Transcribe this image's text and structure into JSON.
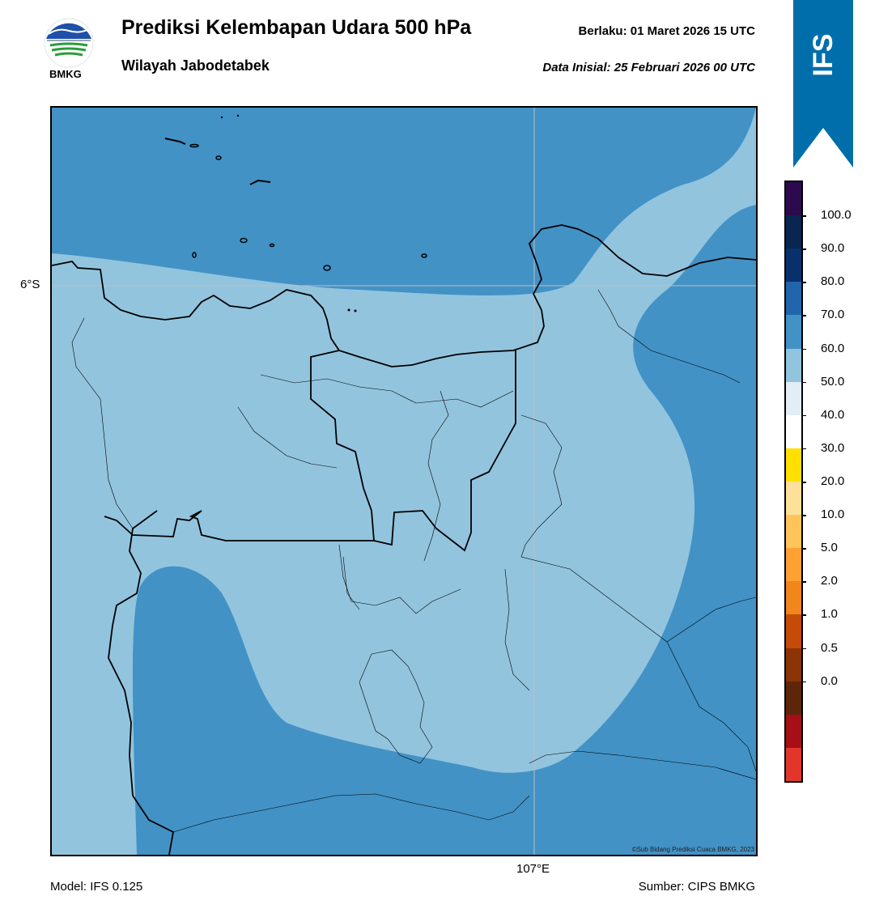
{
  "header": {
    "title": "Prediksi Kelembapan Udara 500 hPa",
    "subtitle": "Wilayah Jabodetabek",
    "valid_label": "Berlaku:",
    "valid_time": "01 Maret 2026 15 UTC",
    "init_label": "Data Inisial:",
    "init_time": "25 Februari 2026 00 UTC"
  },
  "logo": {
    "text": "BMKG",
    "icon": "bmkg-logo"
  },
  "ribbon": {
    "text": "IFS",
    "color": "#006eab"
  },
  "map": {
    "lat_label": "6°S",
    "lon_label": "107°E",
    "credit": "©Sub Bidang Prediksi Cuaca BMKG, 2023",
    "colors": {
      "band_60_70": "#92c4de",
      "band_70_80": "#4292c6"
    }
  },
  "colorbar": {
    "ticks": [
      "100.0",
      "90.0",
      "80.0",
      "70.0",
      "60.0",
      "50.0",
      "40.0",
      "30.0",
      "20.0",
      "10.0",
      "5.0",
      "2.0",
      "1.0",
      "0.5",
      "0.0"
    ],
    "colors": [
      "#2d0a4e",
      "#08264f",
      "#08306b",
      "#2166ac",
      "#4292c6",
      "#92c4de",
      "#e3edf6",
      "#ffffff",
      "#ffe000",
      "#ffe09a",
      "#ffc45a",
      "#ffa033",
      "#f0861c",
      "#c64b08",
      "#8b3405",
      "#5e2608",
      "#a50f15",
      "#e3352b"
    ]
  },
  "footer": {
    "model": "Model: IFS 0.125",
    "source": "Sumber: CIPS BMKG"
  }
}
